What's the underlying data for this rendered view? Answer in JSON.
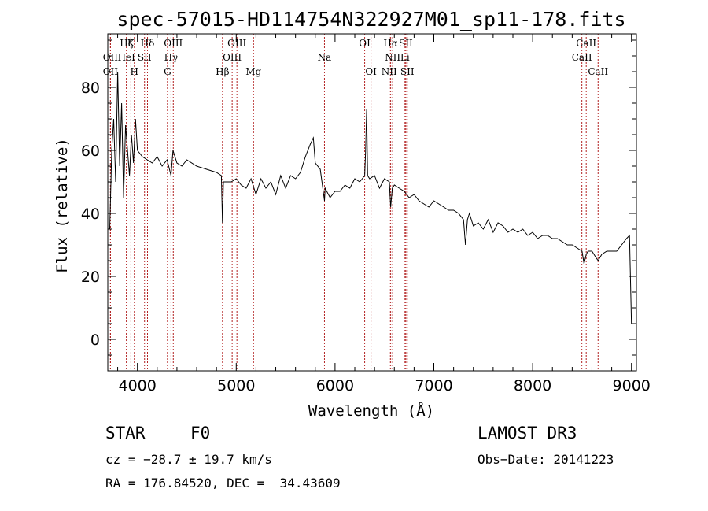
{
  "chart_data": {
    "type": "line",
    "title": "spec-57015-HD114754N322927M01_sp11-178.fits",
    "xlabel": "Wavelength (Å)",
    "ylabel": "Flux (relative)",
    "xlim": [
      3700,
      9050
    ],
    "ylim": [
      -10,
      97
    ],
    "xticks": [
      4000,
      5000,
      6000,
      7000,
      8000,
      9000
    ],
    "yticks": [
      0,
      20,
      40,
      60,
      80
    ],
    "series": [
      {
        "name": "flux",
        "x": [
          3720,
          3740,
          3760,
          3780,
          3800,
          3820,
          3840,
          3860,
          3880,
          3900,
          3920,
          3940,
          3960,
          3980,
          4000,
          4050,
          4100,
          4150,
          4200,
          4250,
          4300,
          4340,
          4360,
          4400,
          4450,
          4500,
          4600,
          4700,
          4800,
          4850,
          4861,
          4870,
          4900,
          4950,
          5000,
          5050,
          5100,
          5150,
          5200,
          5250,
          5300,
          5350,
          5400,
          5450,
          5500,
          5550,
          5600,
          5650,
          5700,
          5750,
          5780,
          5800,
          5850,
          5893,
          5900,
          5950,
          6000,
          6050,
          6100,
          6150,
          6200,
          6250,
          6300,
          6310,
          6320,
          6330,
          6350,
          6400,
          6450,
          6500,
          6550,
          6563,
          6580,
          6600,
          6650,
          6700,
          6750,
          6800,
          6850,
          6900,
          6950,
          7000,
          7050,
          7100,
          7150,
          7200,
          7250,
          7300,
          7320,
          7340,
          7360,
          7400,
          7450,
          7500,
          7550,
          7600,
          7650,
          7700,
          7750,
          7800,
          7850,
          7900,
          7950,
          8000,
          8050,
          8100,
          8150,
          8200,
          8250,
          8300,
          8350,
          8400,
          8450,
          8500,
          8520,
          8542,
          8560,
          8600,
          8640,
          8662,
          8700,
          8750,
          8800,
          8850,
          8900,
          8950,
          8980,
          9000
        ],
        "y": [
          35,
          60,
          70,
          50,
          85,
          55,
          75,
          45,
          68,
          60,
          52,
          65,
          56,
          70,
          60,
          58,
          57,
          56,
          58,
          55,
          57,
          52,
          60,
          56,
          55,
          57,
          55,
          54,
          53,
          52,
          37,
          50,
          50,
          50,
          51,
          49,
          48,
          51,
          46,
          51,
          48,
          50,
          46,
          52,
          48,
          52,
          51,
          53,
          58,
          62,
          64,
          56,
          54,
          44,
          48,
          45,
          47,
          47,
          49,
          48,
          51,
          50,
          52,
          60,
          73,
          52,
          51,
          52,
          48,
          51,
          50,
          42,
          48,
          49,
          48,
          47,
          45,
          46,
          44,
          43,
          42,
          44,
          43,
          42,
          41,
          41,
          40,
          38,
          30,
          38,
          40,
          36,
          37,
          35,
          38,
          34,
          37,
          36,
          34,
          35,
          34,
          35,
          33,
          34,
          32,
          33,
          33,
          32,
          32,
          31,
          30,
          30,
          29,
          28,
          24,
          27,
          28,
          28,
          26,
          25,
          27,
          28,
          28,
          28,
          30,
          32,
          33,
          5
        ]
      }
    ],
    "lines": [
      {
        "name": "Hζ",
        "wavelength": 3889,
        "row": 1
      },
      {
        "name": "K",
        "wavelength": 3934,
        "row": 1
      },
      {
        "name": "Hδ",
        "wavelength": 4102,
        "row": 1
      },
      {
        "name": "OIII",
        "wavelength": 4363,
        "row": 1
      },
      {
        "name": "OIII",
        "wavelength": 5007,
        "row": 1
      },
      {
        "name": "OI",
        "wavelength": 6300,
        "row": 1
      },
      {
        "name": "Hα",
        "wavelength": 6563,
        "row": 1
      },
      {
        "name": "SII",
        "wavelength": 6717,
        "row": 1
      },
      {
        "name": "CaII",
        "wavelength": 8542,
        "row": 1
      },
      {
        "name": "OII",
        "wavelength": 3727,
        "row": 2
      },
      {
        "name": "HeI",
        "wavelength": 3889,
        "row": 2
      },
      {
        "name": "SII",
        "wavelength": 4072,
        "row": 2
      },
      {
        "name": "Hγ",
        "wavelength": 4340,
        "row": 2
      },
      {
        "name": "OIII",
        "wavelength": 4959,
        "row": 2
      },
      {
        "name": "Na",
        "wavelength": 5893,
        "row": 2
      },
      {
        "name": "NII",
        "wavelength": 6583,
        "row": 2
      },
      {
        "name": "Li",
        "wavelength": 6708,
        "row": 2
      },
      {
        "name": "CaII",
        "wavelength": 8498,
        "row": 2
      },
      {
        "name": "OII",
        "wavelength": 3727,
        "row": 3
      },
      {
        "name": "H",
        "wavelength": 3969,
        "row": 3
      },
      {
        "name": "G",
        "wavelength": 4304,
        "row": 3
      },
      {
        "name": "Hβ",
        "wavelength": 4861,
        "row": 3
      },
      {
        "name": "Mg",
        "wavelength": 5175,
        "row": 3
      },
      {
        "name": "OI",
        "wavelength": 6364,
        "row": 3
      },
      {
        "name": "NII",
        "wavelength": 6548,
        "row": 3
      },
      {
        "name": "SII",
        "wavelength": 6731,
        "row": 3
      },
      {
        "name": "CaII",
        "wavelength": 8662,
        "row": 3
      }
    ],
    "line_color": "#b22222"
  },
  "info": {
    "class": "STAR",
    "subclass": "F0",
    "survey": "LAMOST DR3",
    "cz": "cz = −28.7 ± 19.7 km/s",
    "obsdate": "Obs−Date: 20141223",
    "radec": "RA = 176.84520, DEC =  34.43609"
  }
}
